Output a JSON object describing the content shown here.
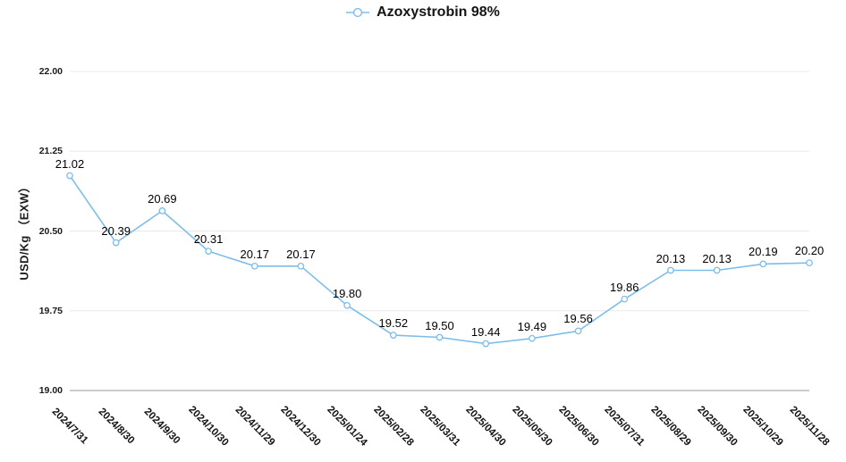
{
  "legend": {
    "label": "Azoxystrobin 98%"
  },
  "chart_data": {
    "type": "line",
    "title": "Azoxystrobin 98%",
    "xlabel": "",
    "ylabel": "USD/Kg （EXW）",
    "categories": [
      "2024/7/31",
      "2024/8/30",
      "2024/9/30",
      "2024/10/30",
      "2024/11/29",
      "2024/12/30",
      "2025/01/24",
      "2025/02/28",
      "2025/03/31",
      "2025/04/30",
      "2025/05/30",
      "2025/06/30",
      "2025/07/31",
      "2025/08/29",
      "2025/09/30",
      "2025/10/29",
      "2025/11/28"
    ],
    "values": [
      21.02,
      20.39,
      20.69,
      20.31,
      20.17,
      20.17,
      19.8,
      19.52,
      19.5,
      19.44,
      19.49,
      19.56,
      19.86,
      20.13,
      20.13,
      20.19,
      20.2
    ],
    "series": [
      {
        "name": "Azoxystrobin 98%",
        "values": [
          21.02,
          20.39,
          20.69,
          20.31,
          20.17,
          20.17,
          19.8,
          19.52,
          19.5,
          19.44,
          19.49,
          19.56,
          19.86,
          20.13,
          20.13,
          20.19,
          20.2
        ]
      }
    ],
    "ylim": [
      19.0,
      22.0
    ],
    "yticks": [
      22.0,
      21.25,
      20.5,
      19.75,
      19.0
    ],
    "grid": true,
    "legend_position": "top-center",
    "point_labels_visible": true,
    "colors": {
      "line": "#7dbdea",
      "marker_fill": "#ffffff",
      "grid": "#e9e9e9",
      "axis": "#9a9a9a",
      "text": "#111111"
    }
  }
}
